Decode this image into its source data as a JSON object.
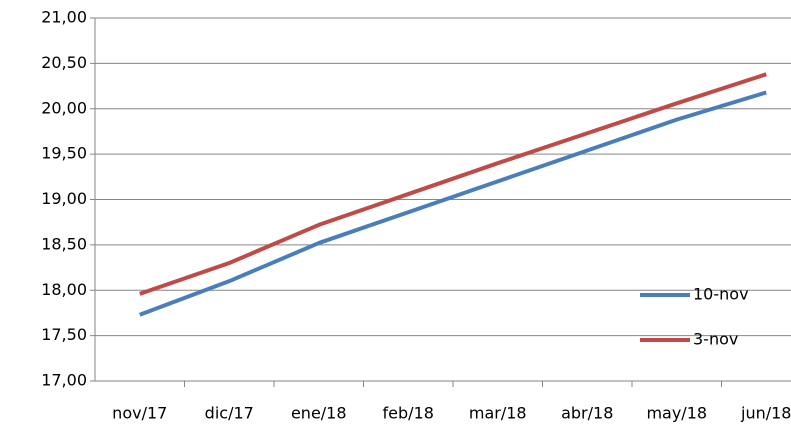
{
  "chart_data": {
    "type": "line",
    "categories": [
      "nov/17",
      "dic/17",
      "ene/18",
      "feb/18",
      "mar/18",
      "abr/18",
      "may/18",
      "jun/18"
    ],
    "series": [
      {
        "name": "10-nov",
        "color": "#4a7ebb",
        "values": [
          17.73,
          18.1,
          18.52,
          18.86,
          19.2,
          19.54,
          19.88,
          20.18
        ]
      },
      {
        "name": "3-nov",
        "color": "#be4b48",
        "values": [
          17.96,
          18.3,
          18.72,
          19.06,
          19.4,
          19.73,
          20.06,
          20.38
        ]
      }
    ],
    "ylim": [
      17,
      21
    ],
    "yticks": [
      {
        "value": 17,
        "label": "17,00"
      },
      {
        "value": 17.5,
        "label": "17,50"
      },
      {
        "value": 18,
        "label": "18,00"
      },
      {
        "value": 18.5,
        "label": "18,50"
      },
      {
        "value": 19,
        "label": "19,00"
      },
      {
        "value": 19.5,
        "label": "19,50"
      },
      {
        "value": 20,
        "label": "20,00"
      },
      {
        "value": 20.5,
        "label": "20,50"
      },
      {
        "value": 21,
        "label": "21,00"
      }
    ],
    "grid": true,
    "legend": "lower right"
  }
}
